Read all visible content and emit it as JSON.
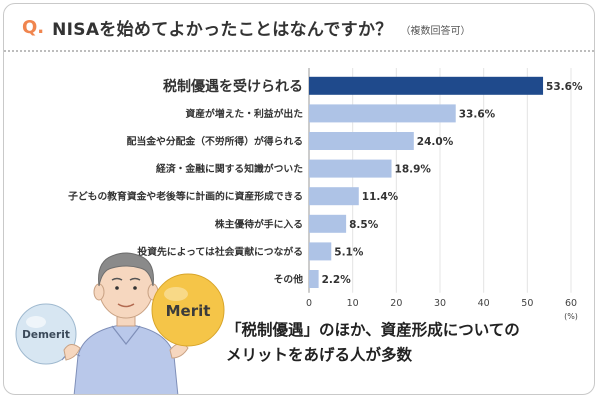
{
  "header": {
    "q_mark": "Q.",
    "question": "NISAを始めてよかったことはなんですか？",
    "note": "（複数回答可）"
  },
  "chart_data": {
    "type": "bar",
    "orientation": "horizontal",
    "categories": [
      "税制優遇を受けられる",
      "資産が増えた・利益が出た",
      "配当金や分配金（不労所得）が得られる",
      "経済・金融に関する知識がついた",
      "子どもの教育資金や老後等に計画的に資産形成できる",
      "株主優待が手に入る",
      "投資先によっては社会貢献につながる",
      "その他"
    ],
    "values": [
      53.6,
      33.6,
      24.0,
      18.9,
      11.4,
      8.5,
      5.1,
      2.2
    ],
    "value_labels": [
      "53.6%",
      "33.6%",
      "24.0%",
      "18.9%",
      "11.4%",
      "8.5%",
      "5.1%",
      "2.2%"
    ],
    "xlim": [
      0,
      60
    ],
    "xticks": [
      "0",
      "10",
      "20",
      "30",
      "40",
      "50",
      "60"
    ],
    "xunit": "(%)",
    "grid": true,
    "colors": {
      "highlight": "#1f4a8c",
      "bar": "#aec3e6",
      "grid": "#e4e4e4"
    }
  },
  "illustration": {
    "badge_left": "Demerit",
    "badge_right": "Merit",
    "colors": {
      "merit": "#f5c548",
      "demerit": "#d7e6f2",
      "shirt": "#b9c8ea",
      "accent": "#f0854e"
    }
  },
  "caption": {
    "line1": "「税制優遇」のほか、資産形成についての",
    "line2": "メリットをあげる人が多数"
  }
}
